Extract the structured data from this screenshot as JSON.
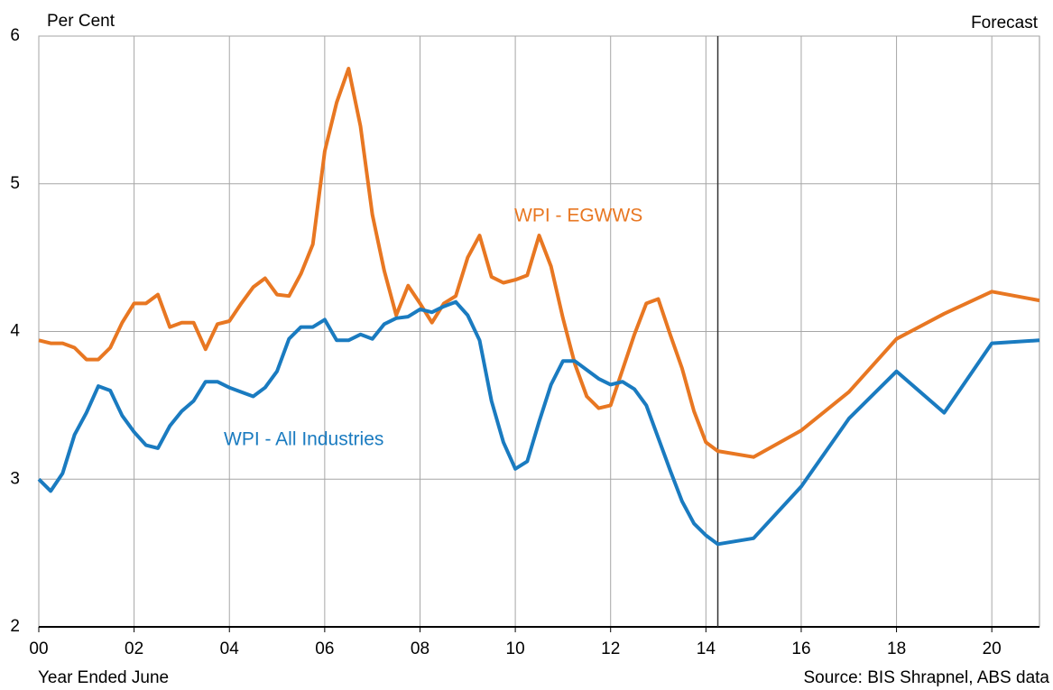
{
  "chart_data": {
    "type": "line",
    "y_axis_label": "Per Cent",
    "x_axis_label": "Year Ended June",
    "source": "Source: BIS Shrapnel, ABS data",
    "forecast_label": "Forecast",
    "forecast_start": 2014.25,
    "x": [
      2000,
      2000.25,
      2000.5,
      2000.75,
      2001,
      2001.25,
      2001.5,
      2001.75,
      2002,
      2002.25,
      2002.5,
      2002.75,
      2003,
      2003.25,
      2003.5,
      2003.75,
      2004,
      2004.25,
      2004.5,
      2004.75,
      2005,
      2005.25,
      2005.5,
      2005.75,
      2006,
      2006.25,
      2006.5,
      2006.75,
      2007,
      2007.25,
      2007.5,
      2007.75,
      2008,
      2008.25,
      2008.5,
      2008.75,
      2009,
      2009.25,
      2009.5,
      2009.75,
      2010,
      2010.25,
      2010.5,
      2010.75,
      2011,
      2011.25,
      2011.5,
      2011.75,
      2012,
      2012.25,
      2012.5,
      2012.75,
      2013,
      2013.25,
      2013.5,
      2013.75,
      2014,
      2014.25,
      2015,
      2016,
      2017,
      2018,
      2019,
      2020,
      2021
    ],
    "series": [
      {
        "name": "WPI - EGWWS",
        "color": "#e87722",
        "values": [
          3.94,
          3.92,
          3.92,
          3.89,
          3.81,
          3.81,
          3.89,
          4.06,
          4.19,
          4.19,
          4.25,
          4.03,
          4.06,
          4.06,
          3.88,
          4.05,
          4.07,
          4.19,
          4.3,
          4.36,
          4.25,
          4.24,
          4.39,
          4.59,
          5.22,
          5.55,
          5.78,
          5.39,
          4.79,
          4.41,
          4.11,
          4.31,
          4.19,
          4.06,
          4.19,
          4.24,
          4.5,
          4.65,
          4.37,
          4.33,
          4.35,
          4.38,
          4.65,
          4.44,
          4.09,
          3.78,
          3.56,
          3.48,
          3.5,
          3.74,
          3.98,
          4.19,
          4.22,
          3.98,
          3.75,
          3.46,
          3.25,
          3.19,
          3.15,
          3.33,
          3.59,
          3.95,
          4.12,
          4.27,
          4.21
        ]
      },
      {
        "name": "WPI - All Industries",
        "color": "#1a7bc0",
        "values": [
          3.0,
          2.92,
          3.04,
          3.3,
          3.45,
          3.63,
          3.6,
          3.43,
          3.32,
          3.23,
          3.21,
          3.36,
          3.46,
          3.53,
          3.66,
          3.66,
          3.62,
          3.59,
          3.56,
          3.62,
          3.73,
          3.95,
          4.03,
          4.03,
          4.08,
          3.94,
          3.94,
          3.98,
          3.95,
          4.05,
          4.09,
          4.1,
          4.15,
          4.13,
          4.17,
          4.2,
          4.11,
          3.94,
          3.53,
          3.25,
          3.07,
          3.12,
          3.39,
          3.64,
          3.8,
          3.8,
          3.74,
          3.68,
          3.64,
          3.66,
          3.61,
          3.5,
          3.28,
          3.06,
          2.85,
          2.7,
          2.62,
          2.56,
          2.6,
          2.95,
          3.41,
          3.73,
          3.45,
          3.92,
          3.94
        ]
      }
    ],
    "xlim": [
      2000,
      2021
    ],
    "ylim": [
      2,
      6
    ],
    "yticks": [
      2,
      3,
      4,
      5,
      6
    ],
    "xticks": [
      {
        "value": 2000,
        "label": "00"
      },
      {
        "value": 2002,
        "label": "02"
      },
      {
        "value": 2004,
        "label": "04"
      },
      {
        "value": 2006,
        "label": "06"
      },
      {
        "value": 2008,
        "label": "08"
      },
      {
        "value": 2010,
        "label": "10"
      },
      {
        "value": 2012,
        "label": "12"
      },
      {
        "value": 2014,
        "label": "14"
      },
      {
        "value": 2016,
        "label": "16"
      },
      {
        "value": 2018,
        "label": "18"
      },
      {
        "value": 2020,
        "label": "20"
      }
    ],
    "grid": true
  }
}
